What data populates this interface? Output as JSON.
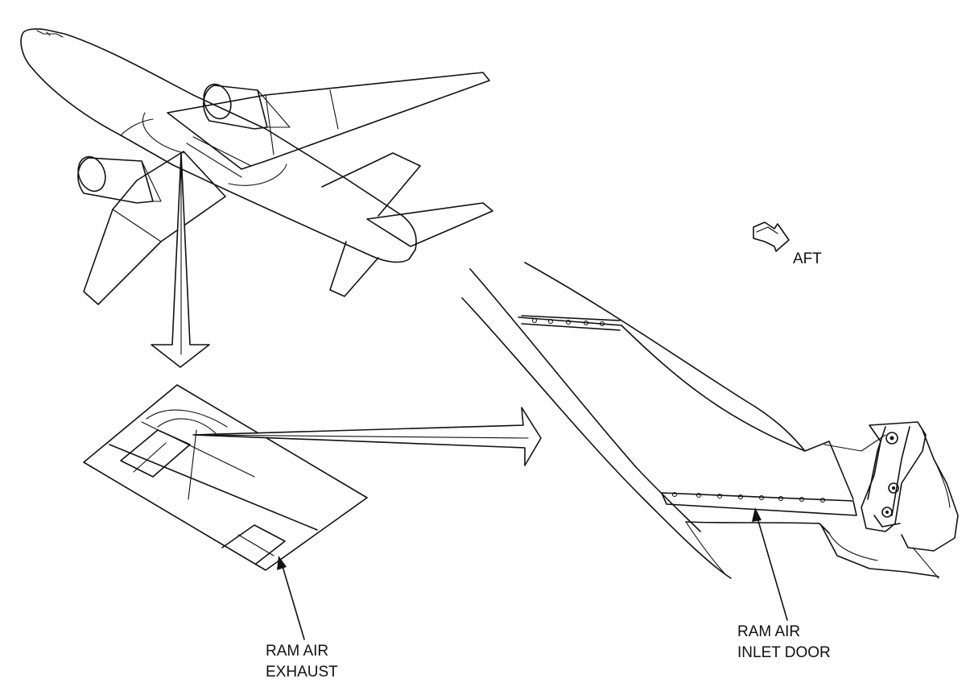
{
  "labels": {
    "aft": "AFT",
    "exhaust_line1": "RAM AIR",
    "exhaust_line2": "EXHAUST",
    "inlet_line1": "RAM AIR",
    "inlet_line2": "INLET DOOR"
  },
  "colors": {
    "ink": "#111111",
    "paper": "#ffffff"
  },
  "icons": {
    "direction": "aft-direction-arrow-icon"
  }
}
